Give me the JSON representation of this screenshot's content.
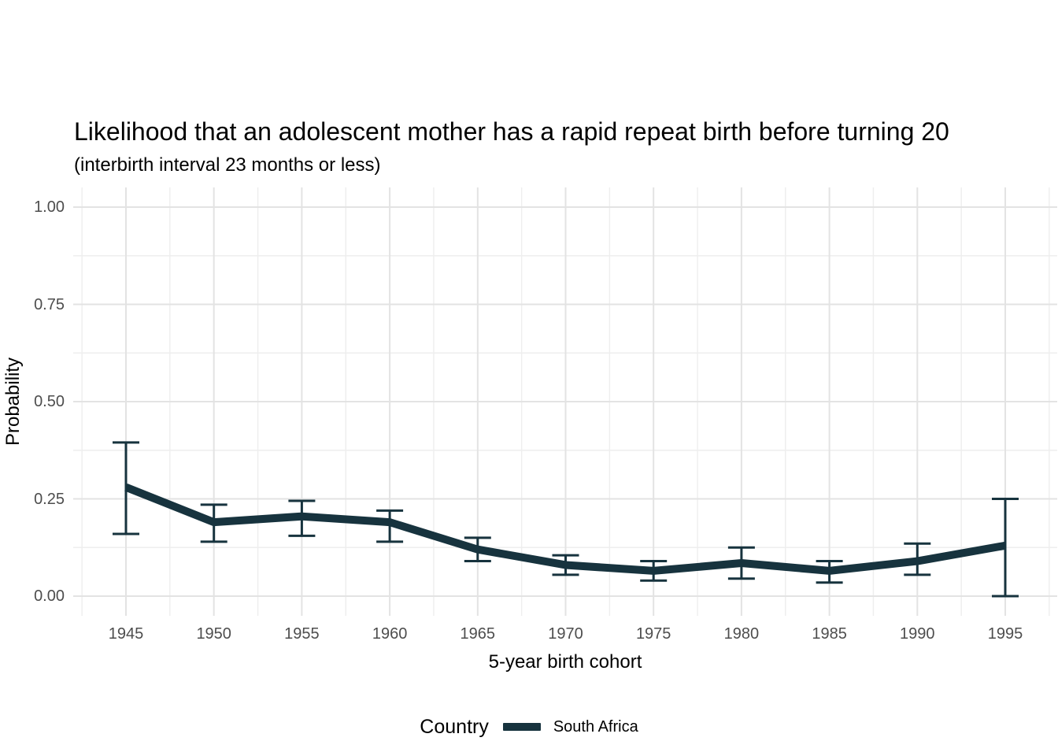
{
  "chart_data": {
    "type": "line",
    "title": "Likelihood that an adolescent mother has a rapid repeat birth before turning 20",
    "subtitle": "(interbirth interval 23 months or less)",
    "xlabel": "5-year birth cohort",
    "ylabel": "Probability",
    "x": [
      1945,
      1950,
      1955,
      1960,
      1965,
      1970,
      1975,
      1980,
      1985,
      1990,
      1995
    ],
    "x_tick_labels": [
      "1945",
      "1950",
      "1955",
      "1960",
      "1965",
      "1970",
      "1975",
      "1980",
      "1985",
      "1990",
      "1995"
    ],
    "y_ticks": [
      0.0,
      0.25,
      0.5,
      0.75,
      1.0
    ],
    "y_tick_labels": [
      "0.00",
      "0.25",
      "0.50",
      "0.75",
      "1.00"
    ],
    "ylim": [
      0,
      1
    ],
    "xlim": [
      1942,
      1998
    ],
    "grid": {
      "major": true,
      "minor": true
    },
    "legend": {
      "title": "Country",
      "position": "bottom",
      "entries": [
        {
          "label": "South Africa",
          "color": "#17333E"
        }
      ]
    },
    "series": [
      {
        "name": "South Africa",
        "color": "#17333E",
        "values": [
          0.28,
          0.19,
          0.205,
          0.19,
          0.12,
          0.08,
          0.065,
          0.085,
          0.065,
          0.09,
          0.13
        ],
        "ci_low": [
          0.16,
          0.14,
          0.155,
          0.14,
          0.09,
          0.055,
          0.04,
          0.045,
          0.035,
          0.055,
          0.0
        ],
        "ci_high": [
          0.395,
          0.235,
          0.245,
          0.22,
          0.15,
          0.105,
          0.09,
          0.125,
          0.09,
          0.135,
          0.25
        ]
      }
    ]
  },
  "colors": {
    "background": "#ffffff",
    "series_line": "#17333E",
    "grid_major": "#e3e3e3",
    "grid_minor": "#eeeeee",
    "tick_label": "#4d4d4d",
    "text": "#000000"
  }
}
